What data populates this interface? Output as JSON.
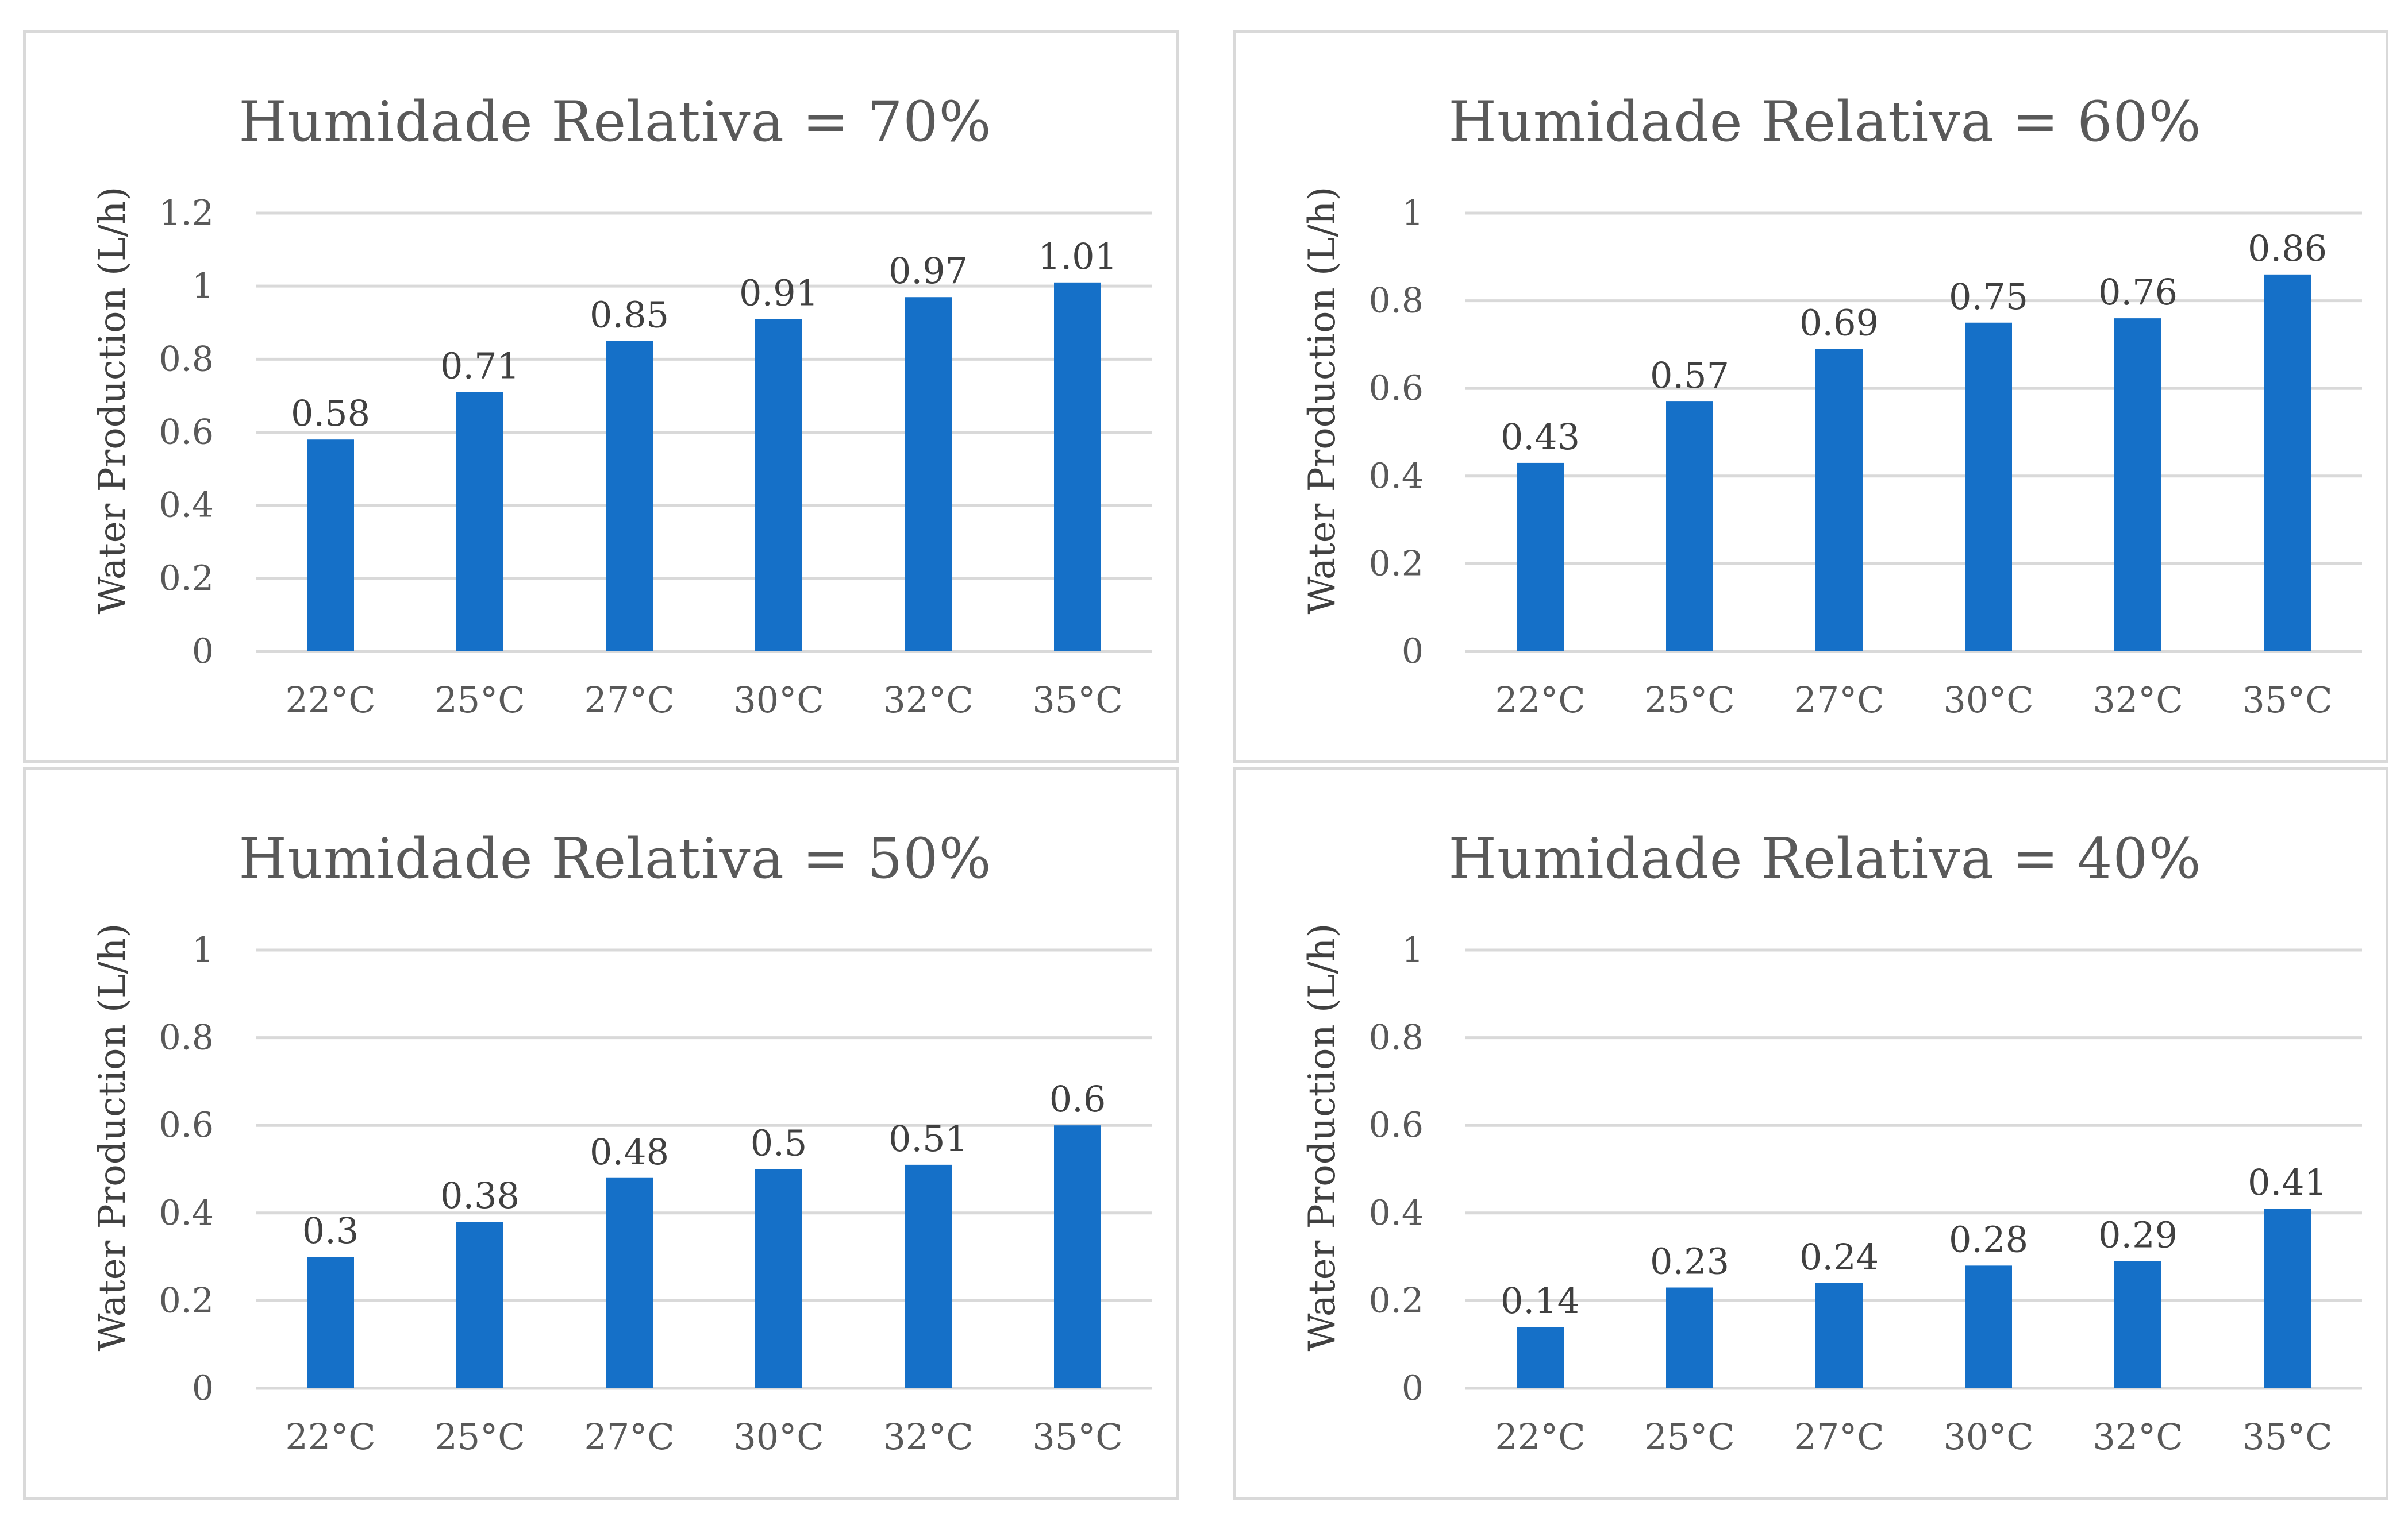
{
  "colors": {
    "bar": "#1570C8",
    "grid": "#D9D9D9",
    "text": "#595959",
    "border": "#D9D9D9"
  },
  "chart_data": [
    {
      "type": "bar",
      "title": "Humidade Relativa = 70%",
      "xlabel": "",
      "ylabel": "Water Production (L/h)",
      "categories": [
        "22°C",
        "25°C",
        "27°C",
        "30°C",
        "32°C",
        "35°C"
      ],
      "values": [
        0.58,
        0.71,
        0.85,
        0.91,
        0.97,
        1.01
      ],
      "data_labels": [
        "0.58",
        "0.71",
        "0.85",
        "0.91",
        "0.97",
        "1.01"
      ],
      "ylim": [
        0,
        1.2
      ],
      "yticks": [
        0,
        0.2,
        0.4,
        0.6,
        0.8,
        1,
        1.2
      ],
      "ytick_labels": [
        "0",
        "0.2",
        "0.4",
        "0.6",
        "0.8",
        "1",
        "1.2"
      ],
      "grid": true,
      "legend": "none"
    },
    {
      "type": "bar",
      "title": "Humidade Relativa = 60%",
      "xlabel": "",
      "ylabel": "Water Production (L/h)",
      "categories": [
        "22°C",
        "25°C",
        "27°C",
        "30°C",
        "32°C",
        "35°C"
      ],
      "values": [
        0.43,
        0.57,
        0.69,
        0.75,
        0.76,
        0.86
      ],
      "data_labels": [
        "0.43",
        "0.57",
        "0.69",
        "0.75",
        "0.76",
        "0.86"
      ],
      "ylim": [
        0,
        1
      ],
      "yticks": [
        0,
        0.2,
        0.4,
        0.6,
        0.8,
        1
      ],
      "ytick_labels": [
        "0",
        "0.2",
        "0.4",
        "0.6",
        "0.8",
        "1"
      ],
      "grid": true,
      "legend": "none"
    },
    {
      "type": "bar",
      "title": "Humidade Relativa = 50%",
      "xlabel": "",
      "ylabel": "Water Production (L/h)",
      "categories": [
        "22°C",
        "25°C",
        "27°C",
        "30°C",
        "32°C",
        "35°C"
      ],
      "values": [
        0.3,
        0.38,
        0.48,
        0.5,
        0.51,
        0.6
      ],
      "data_labels": [
        "0.3",
        "0.38",
        "0.48",
        "0.5",
        "0.51",
        "0.6"
      ],
      "ylim": [
        0,
        1
      ],
      "yticks": [
        0,
        0.2,
        0.4,
        0.6,
        0.8,
        1
      ],
      "ytick_labels": [
        "0",
        "0.2",
        "0.4",
        "0.6",
        "0.8",
        "1"
      ],
      "grid": true,
      "legend": "none"
    },
    {
      "type": "bar",
      "title": "Humidade Relativa = 40%",
      "xlabel": "",
      "ylabel": "Water Production (L/h)",
      "categories": [
        "22°C",
        "25°C",
        "27°C",
        "30°C",
        "32°C",
        "35°C"
      ],
      "values": [
        0.14,
        0.23,
        0.24,
        0.28,
        0.29,
        0.41
      ],
      "data_labels": [
        "0.14",
        "0.23",
        "0.24",
        "0.28",
        "0.29",
        "0.41"
      ],
      "ylim": [
        0,
        1
      ],
      "yticks": [
        0,
        0.2,
        0.4,
        0.6,
        0.8,
        1
      ],
      "ytick_labels": [
        "0",
        "0.2",
        "0.4",
        "0.6",
        "0.8",
        "1"
      ],
      "grid": true,
      "legend": "none"
    }
  ]
}
